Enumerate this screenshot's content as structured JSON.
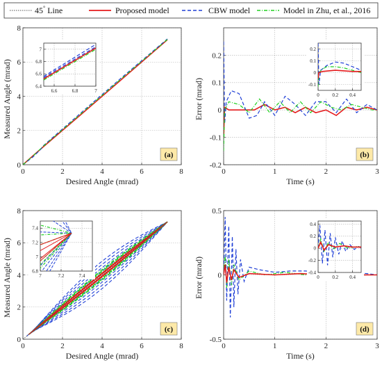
{
  "colors": {
    "line45": "#555555",
    "proposed": "#e41a1c",
    "cbw": "#1f3fd6",
    "zhu": "#20d020",
    "grid": "#b0b0b0",
    "label_box": "#fde9a8"
  },
  "legend": {
    "line45_main": "45",
    "line45_deg": "°",
    "line45_rest": " Line",
    "proposed": "Proposed model",
    "cbw": "CBW model",
    "zhu": "Model in Zhu, et al., 2016"
  },
  "chart_data": [
    {
      "id": "a",
      "type": "line",
      "panel_label": "(a)",
      "xlabel": "Desired Angle (mrad)",
      "ylabel": "Measured Angle (mrad)",
      "xlim": [
        0,
        8
      ],
      "ylim": [
        0,
        8
      ],
      "xticks": [
        "0",
        "2",
        "4",
        "6",
        "8"
      ],
      "yticks": [
        "0",
        "2",
        "4",
        "6",
        "8"
      ],
      "grid": true,
      "series": [
        {
          "name": "45° Line",
          "x": [
            0,
            7.3
          ],
          "y": [
            0,
            7.3
          ]
        },
        {
          "name": "Proposed model",
          "x": [
            0,
            0.5,
            1,
            3,
            5,
            7.3
          ],
          "y": [
            0,
            0.52,
            1.02,
            3.0,
            5.0,
            7.3
          ]
        },
        {
          "name": "CBW model",
          "x": [
            0,
            0.5,
            0.9,
            1,
            3,
            5,
            7.3
          ],
          "y": [
            0,
            0.45,
            0.9,
            1.08,
            3.1,
            5.1,
            7.35
          ]
        },
        {
          "name": "Model in Zhu, et al., 2016",
          "x": [
            0,
            0.5,
            1,
            3,
            5,
            7.3
          ],
          "y": [
            0,
            0.5,
            1.05,
            3.05,
            5.05,
            7.32
          ]
        }
      ],
      "inset": {
        "xlim": [
          6.5,
          7
        ],
        "ylim": [
          6.4,
          7.1
        ],
        "xticks": [
          "6.6",
          "6.8",
          "7"
        ],
        "yticks": [
          "6.4",
          "6.6",
          "6.8",
          "7"
        ],
        "series": [
          {
            "name": "CBW model",
            "x": [
              6.5,
              7
            ],
            "y": [
              6.56,
              7.08
            ]
          },
          {
            "name": "Proposed model",
            "x": [
              6.5,
              7
            ],
            "y": [
              6.52,
              7.02
            ]
          },
          {
            "name": "Model in Zhu, et al., 2016",
            "x": [
              6.5,
              7
            ],
            "y": [
              6.5,
              7.0
            ]
          },
          {
            "name": "CBW model",
            "x": [
              6.5,
              7
            ],
            "y": [
              6.54,
              7.04
            ]
          }
        ]
      }
    },
    {
      "id": "b",
      "type": "line",
      "panel_label": "(b)",
      "xlabel": "Time (s)",
      "ylabel": "Error (mrad)",
      "xlim": [
        0,
        3
      ],
      "ylim": [
        -0.2,
        0.3
      ],
      "xticks": [
        "0",
        "1",
        "2",
        "3"
      ],
      "yticks": [
        "-0.2",
        "-0.1",
        "0",
        "0.1",
        "0.2"
      ],
      "grid": true,
      "series": [
        {
          "name": "Proposed model",
          "x": [
            0,
            0.02,
            0.1,
            0.3,
            0.6,
            0.8,
            1.0,
            1.2,
            1.4,
            1.6,
            1.8,
            2.0,
            2.2,
            2.4,
            2.6,
            2.8,
            3.0
          ],
          "y": [
            -0.1,
            0.01,
            0.0,
            0.0,
            0.0,
            0.02,
            0.0,
            0.01,
            -0.01,
            0.01,
            -0.01,
            0.0,
            -0.02,
            0.01,
            0.0,
            0.01,
            0.0
          ]
        },
        {
          "name": "CBW model",
          "x": [
            0,
            0.02,
            0.05,
            0.15,
            0.3,
            0.5,
            0.65,
            0.8,
            1.0,
            1.2,
            1.4,
            1.6,
            1.8,
            2.0,
            2.2,
            2.4,
            2.6,
            2.8,
            3.0
          ],
          "y": [
            0.25,
            -0.05,
            0.03,
            0.07,
            0.06,
            -0.03,
            -0.02,
            0.03,
            -0.02,
            0.05,
            0.02,
            -0.02,
            0.03,
            0.03,
            -0.01,
            0.04,
            -0.01,
            0.02,
            0.0
          ]
        },
        {
          "name": "Model in Zhu, et al., 2016",
          "x": [
            0,
            0.02,
            0.1,
            0.3,
            0.5,
            0.7,
            0.9,
            1.1,
            1.3,
            1.5,
            1.7,
            1.9,
            2.1,
            2.3,
            2.5,
            2.7,
            2.9,
            3.0
          ],
          "y": [
            -0.15,
            0.0,
            0.03,
            0.02,
            -0.01,
            0.04,
            -0.01,
            0.03,
            -0.01,
            0.03,
            -0.01,
            0.03,
            0.01,
            0.0,
            0.02,
            0.01,
            0.0,
            0.0
          ]
        }
      ],
      "inset": {
        "xlim": [
          0,
          0.5
        ],
        "ylim": [
          -0.15,
          0.25
        ],
        "xticks": [
          "0",
          "0.2",
          "0.4"
        ],
        "yticks": [
          "-0.1",
          "0",
          "0.1",
          "0.2"
        ],
        "series": [
          {
            "name": "CBW model",
            "x": [
              0,
              0.01,
              0.03,
              0.1,
              0.2,
              0.3,
              0.4,
              0.5
            ],
            "y": [
              0.25,
              -0.1,
              0.02,
              0.06,
              0.09,
              0.08,
              0.05,
              0.02
            ]
          },
          {
            "name": "Model in Zhu, et al., 2016",
            "x": [
              0,
              0.01,
              0.05,
              0.1,
              0.2,
              0.3,
              0.4,
              0.5
            ],
            "y": [
              -0.12,
              0.0,
              0.03,
              0.05,
              0.05,
              0.04,
              0.02,
              0.0
            ]
          },
          {
            "name": "Proposed model",
            "x": [
              0,
              0.01,
              0.05,
              0.2,
              0.4,
              0.5
            ],
            "y": [
              -0.05,
              0.0,
              0.01,
              0.02,
              0.01,
              0.01
            ]
          }
        ]
      }
    },
    {
      "id": "c",
      "type": "line",
      "panel_label": "(c)",
      "xlabel": "Desired Angle (mrad)",
      "ylabel": "Measured Angle (mrad)",
      "xlim": [
        0,
        8
      ],
      "ylim": [
        0,
        8
      ],
      "xticks": [
        "0",
        "2",
        "4",
        "6",
        "8"
      ],
      "yticks": [
        "0",
        "2",
        "4",
        "6",
        "8"
      ],
      "grid": true,
      "hysteresis_amplitudes_cbw": [
        0.25,
        0.45,
        0.65,
        0.85
      ],
      "hysteresis_amplitudes_zhu": [
        0.12,
        0.22,
        0.32
      ],
      "hysteresis_amplitudes_proposed": [
        0.06,
        0.12
      ],
      "series": [
        {
          "name": "45° Line",
          "x": [
            0,
            7.3
          ],
          "y": [
            0,
            7.3
          ]
        }
      ],
      "inset": {
        "xlim": [
          7,
          7.5
        ],
        "ylim": [
          6.8,
          7.5
        ],
        "xticks": [
          "7",
          "7.2",
          "7.4"
        ],
        "yticks": [
          "6.8",
          "7",
          "7.2",
          "7.4"
        ]
      }
    },
    {
      "id": "d",
      "type": "line",
      "panel_label": "(d)",
      "xlabel": "Time (s)",
      "ylabel": "Error (mrad)",
      "xlim": [
        0,
        3
      ],
      "ylim": [
        -0.5,
        0.5
      ],
      "xticks": [
        "0",
        "1",
        "2",
        "3"
      ],
      "yticks": [
        "-0.5",
        "0",
        "0.5"
      ],
      "grid": true,
      "series": [
        {
          "name": "CBW model",
          "x": [
            0,
            0.03,
            0.06,
            0.1,
            0.13,
            0.17,
            0.2,
            0.24,
            0.28,
            0.33,
            0.4,
            0.5,
            0.7,
            1.0,
            1.3,
            1.6,
            2.0,
            2.4,
            2.8,
            3.0
          ],
          "y": [
            0.0,
            0.45,
            -0.2,
            0.38,
            -0.33,
            0.3,
            -0.25,
            0.2,
            -0.15,
            0.12,
            -0.05,
            0.06,
            0.04,
            0.02,
            0.03,
            0.03,
            0.02,
            0.02,
            0.01,
            0.0
          ]
        },
        {
          "name": "Model in Zhu, et al., 2016",
          "x": [
            0,
            0.03,
            0.06,
            0.1,
            0.15,
            0.2,
            0.3,
            0.5,
            0.8,
            1.2,
            1.6,
            2.0,
            2.5,
            3.0
          ],
          "y": [
            0.0,
            0.15,
            -0.1,
            0.12,
            -0.08,
            0.08,
            -0.04,
            0.03,
            0.0,
            0.02,
            0.0,
            0.01,
            0.0,
            0.0
          ]
        },
        {
          "name": "Proposed model",
          "x": [
            0,
            0.03,
            0.06,
            0.1,
            0.15,
            0.2,
            0.3,
            0.5,
            1.0,
            1.5,
            2.0,
            2.5,
            3.0
          ],
          "y": [
            0.0,
            0.08,
            -0.06,
            0.06,
            -0.04,
            0.04,
            -0.02,
            0.01,
            0.0,
            0.01,
            0.0,
            0.0,
            0.0
          ]
        }
      ],
      "inset": {
        "xlim": [
          0,
          0.5
        ],
        "ylim": [
          -0.4,
          0.45
        ],
        "xticks": [
          "0",
          "0.2",
          "0.4"
        ],
        "yticks": [
          "-0.4",
          "-0.2",
          "0",
          "0.2",
          "0.4"
        ],
        "series": [
          {
            "name": "CBW model",
            "x": [
              0,
              0.02,
              0.05,
              0.08,
              0.11,
              0.14,
              0.17,
              0.2,
              0.24,
              0.28,
              0.32,
              0.37,
              0.42,
              0.47,
              0.5
            ],
            "y": [
              0.0,
              0.38,
              -0.25,
              0.3,
              -0.28,
              0.25,
              -0.15,
              0.18,
              -0.1,
              0.12,
              -0.05,
              0.06,
              -0.02,
              0.03,
              0.0
            ]
          },
          {
            "name": "Model in Zhu, et al., 2016",
            "x": [
              0,
              0.03,
              0.07,
              0.12,
              0.18,
              0.25,
              0.35,
              0.45,
              0.5
            ],
            "y": [
              0.0,
              0.15,
              -0.05,
              0.1,
              -0.02,
              0.08,
              0.0,
              0.03,
              0.02
            ]
          },
          {
            "name": "Proposed model",
            "x": [
              0,
              0.03,
              0.07,
              0.12,
              0.2,
              0.3,
              0.4,
              0.5
            ],
            "y": [
              0.0,
              0.1,
              -0.03,
              0.06,
              0.02,
              0.04,
              0.02,
              0.02
            ]
          }
        ]
      }
    }
  ]
}
